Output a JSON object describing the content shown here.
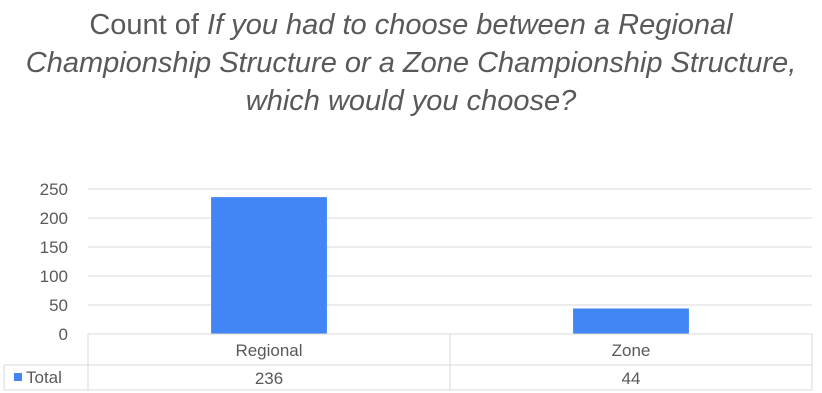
{
  "chart_data": {
    "type": "bar",
    "title_prefix": "Count of ",
    "title_question": "If you had to choose between a Regional Championship Structure or a Zone Championship Structure, which would you choose?",
    "categories": [
      "Regional",
      "Zone"
    ],
    "series": [
      {
        "name": "Total",
        "values": [
          236,
          44
        ],
        "color": "#4285f4"
      }
    ],
    "yticks": [
      0,
      50,
      100,
      150,
      200,
      250
    ],
    "ylim": [
      0,
      250
    ],
    "grid": true,
    "data_table": true,
    "colors": {
      "bar": "#4285f4",
      "grid": "#d9d9d9",
      "text": "#595959"
    }
  }
}
